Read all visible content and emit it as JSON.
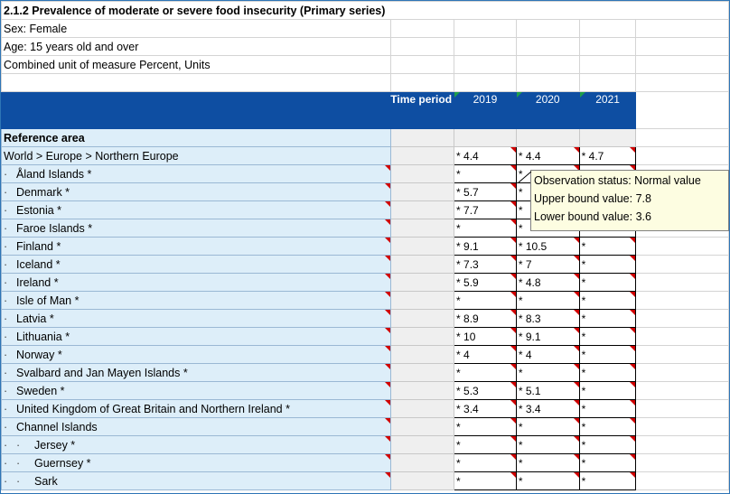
{
  "header": {
    "title": "2.1.2 Prevalence of moderate or severe food insecurity (Primary series)",
    "sex": "Sex: Female",
    "age": "Age: 15 years old and over",
    "unit": "Combined unit of measure Percent, Units"
  },
  "table": {
    "time_period_label": "Time period",
    "years": [
      "2019",
      "2020",
      "2021"
    ],
    "reference_area_label": "Reference area",
    "rows": [
      {
        "label": "World > Europe > Northern Europe",
        "indent": 0,
        "v2019": "* 4.4",
        "v2020": "* 4.4",
        "v2021": "* 4.7"
      },
      {
        "label": "Åland Islands *",
        "indent": 1,
        "v2019": "*",
        "v2020": "*",
        "v2021": "*"
      },
      {
        "label": "Denmark *",
        "indent": 1,
        "v2019": "* 5.7",
        "v2020": "*",
        "v2021": ""
      },
      {
        "label": "Estonia *",
        "indent": 1,
        "v2019": "* 7.7",
        "v2020": "*",
        "v2021": ""
      },
      {
        "label": "Faroe Islands *",
        "indent": 1,
        "v2019": "*",
        "v2020": "*",
        "v2021": ""
      },
      {
        "label": "Finland *",
        "indent": 1,
        "v2019": "* 9.1",
        "v2020": "* 10.5",
        "v2021": "*"
      },
      {
        "label": "Iceland *",
        "indent": 1,
        "v2019": "* 7.3",
        "v2020": "* 7",
        "v2021": "*"
      },
      {
        "label": "Ireland *",
        "indent": 1,
        "v2019": "* 5.9",
        "v2020": "* 4.8",
        "v2021": "*"
      },
      {
        "label": "Isle of Man *",
        "indent": 1,
        "v2019": "*",
        "v2020": "*",
        "v2021": "*"
      },
      {
        "label": "Latvia *",
        "indent": 1,
        "v2019": "* 8.9",
        "v2020": "* 8.3",
        "v2021": "*"
      },
      {
        "label": "Lithuania *",
        "indent": 1,
        "v2019": "* 10",
        "v2020": "* 9.1",
        "v2021": "*"
      },
      {
        "label": "Norway *",
        "indent": 1,
        "v2019": "* 4",
        "v2020": "* 4",
        "v2021": "*"
      },
      {
        "label": "Svalbard and Jan Mayen Islands *",
        "indent": 1,
        "v2019": "*",
        "v2020": "*",
        "v2021": "*"
      },
      {
        "label": "Sweden *",
        "indent": 1,
        "v2019": "* 5.3",
        "v2020": "* 5.1",
        "v2021": "*"
      },
      {
        "label": "United Kingdom of Great Britain and Northern Ireland *",
        "indent": 1,
        "v2019": "* 3.4",
        "v2020": "* 3.4",
        "v2021": "*"
      },
      {
        "label": "Channel Islands",
        "indent": 1,
        "v2019": "*",
        "v2020": "*",
        "v2021": "*"
      },
      {
        "label": "Jersey *",
        "indent": 2,
        "v2019": "*",
        "v2020": "*",
        "v2021": "*"
      },
      {
        "label": "Guernsey *",
        "indent": 2,
        "v2019": "*",
        "v2020": "*",
        "v2021": "*"
      },
      {
        "label": "Sark",
        "indent": 2,
        "v2019": "*",
        "v2020": "*",
        "v2021": "*"
      }
    ],
    "indent_marker": "·"
  },
  "tooltip": {
    "status": "Observation status: Normal value",
    "upper": "Upper bound value: 7.8",
    "lower": "Lower bound value: 3.6"
  },
  "colors": {
    "header_bg": "#0e4ea2",
    "area_bg": "#ddeef9",
    "tooltip_bg": "#fdfde1",
    "comment_flag": "#d00000"
  }
}
